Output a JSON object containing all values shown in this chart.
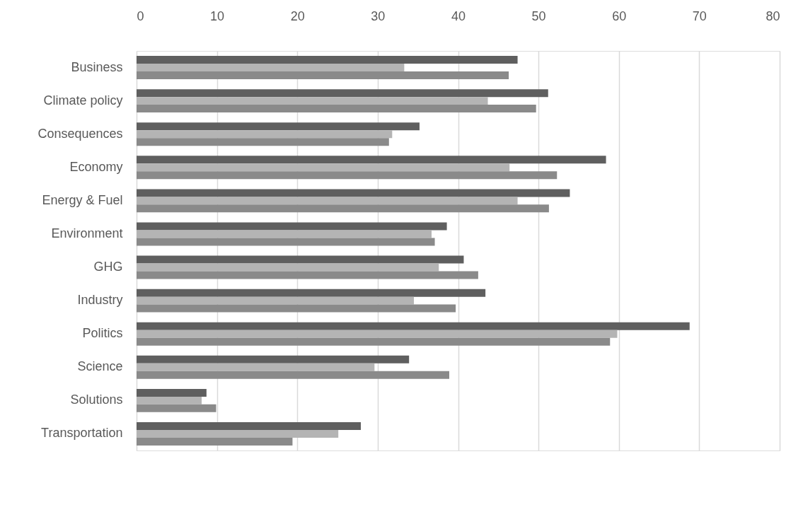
{
  "chart_data": {
    "type": "bar",
    "orientation": "horizontal",
    "categories": [
      "Business",
      "Climate policy",
      "Consequences",
      "Economy",
      "Energy & Fuel",
      "Environment",
      "GHG",
      "Industry",
      "Politics",
      "Science",
      "Solutions",
      "Transportation"
    ],
    "series": [
      {
        "color": "#5f5f5f",
        "values": [
          47.4,
          51.2,
          35.2,
          58.4,
          53.9,
          38.6,
          40.7,
          43.4,
          68.8,
          33.9,
          8.7,
          27.9
        ]
      },
      {
        "color": "#b4b4b4",
        "values": [
          33.3,
          43.7,
          31.8,
          46.4,
          47.4,
          36.7,
          37.6,
          34.5,
          59.8,
          29.6,
          8.1,
          25.1
        ]
      },
      {
        "color": "#8a8a8a",
        "values": [
          46.3,
          49.7,
          31.4,
          52.3,
          51.3,
          37.1,
          42.5,
          39.7,
          58.9,
          38.9,
          9.9,
          19.4
        ]
      }
    ],
    "xlim": [
      0,
      80
    ],
    "xticks": [
      0,
      10,
      20,
      30,
      40,
      50,
      60,
      70,
      80
    ],
    "grid": "x"
  }
}
